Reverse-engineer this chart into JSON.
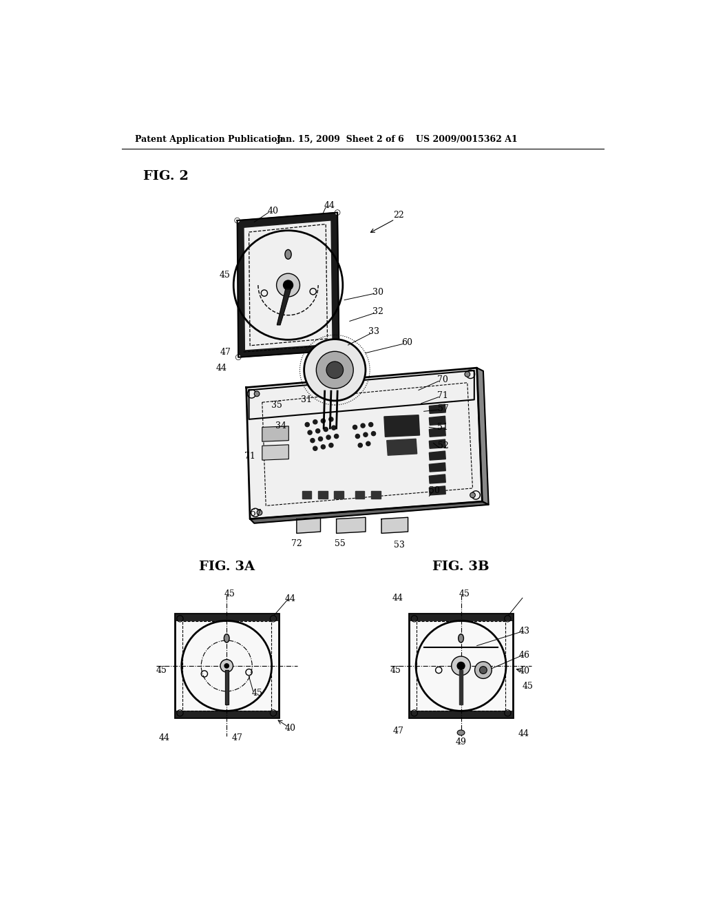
{
  "bg_color": "#ffffff",
  "header_text": "Patent Application Publication",
  "header_date": "Jan. 15, 2009  Sheet 2 of 6",
  "header_patent": "US 2009/0015362 A1",
  "fig2_label": "FIG. 2",
  "fig3a_label": "FIG. 3A",
  "fig3b_label": "FIG. 3B",
  "line_color": "#000000",
  "text_color": "#000000",
  "label_fontsize": 9,
  "header_fontsize": 9,
  "fig_label_fontsize": 14
}
